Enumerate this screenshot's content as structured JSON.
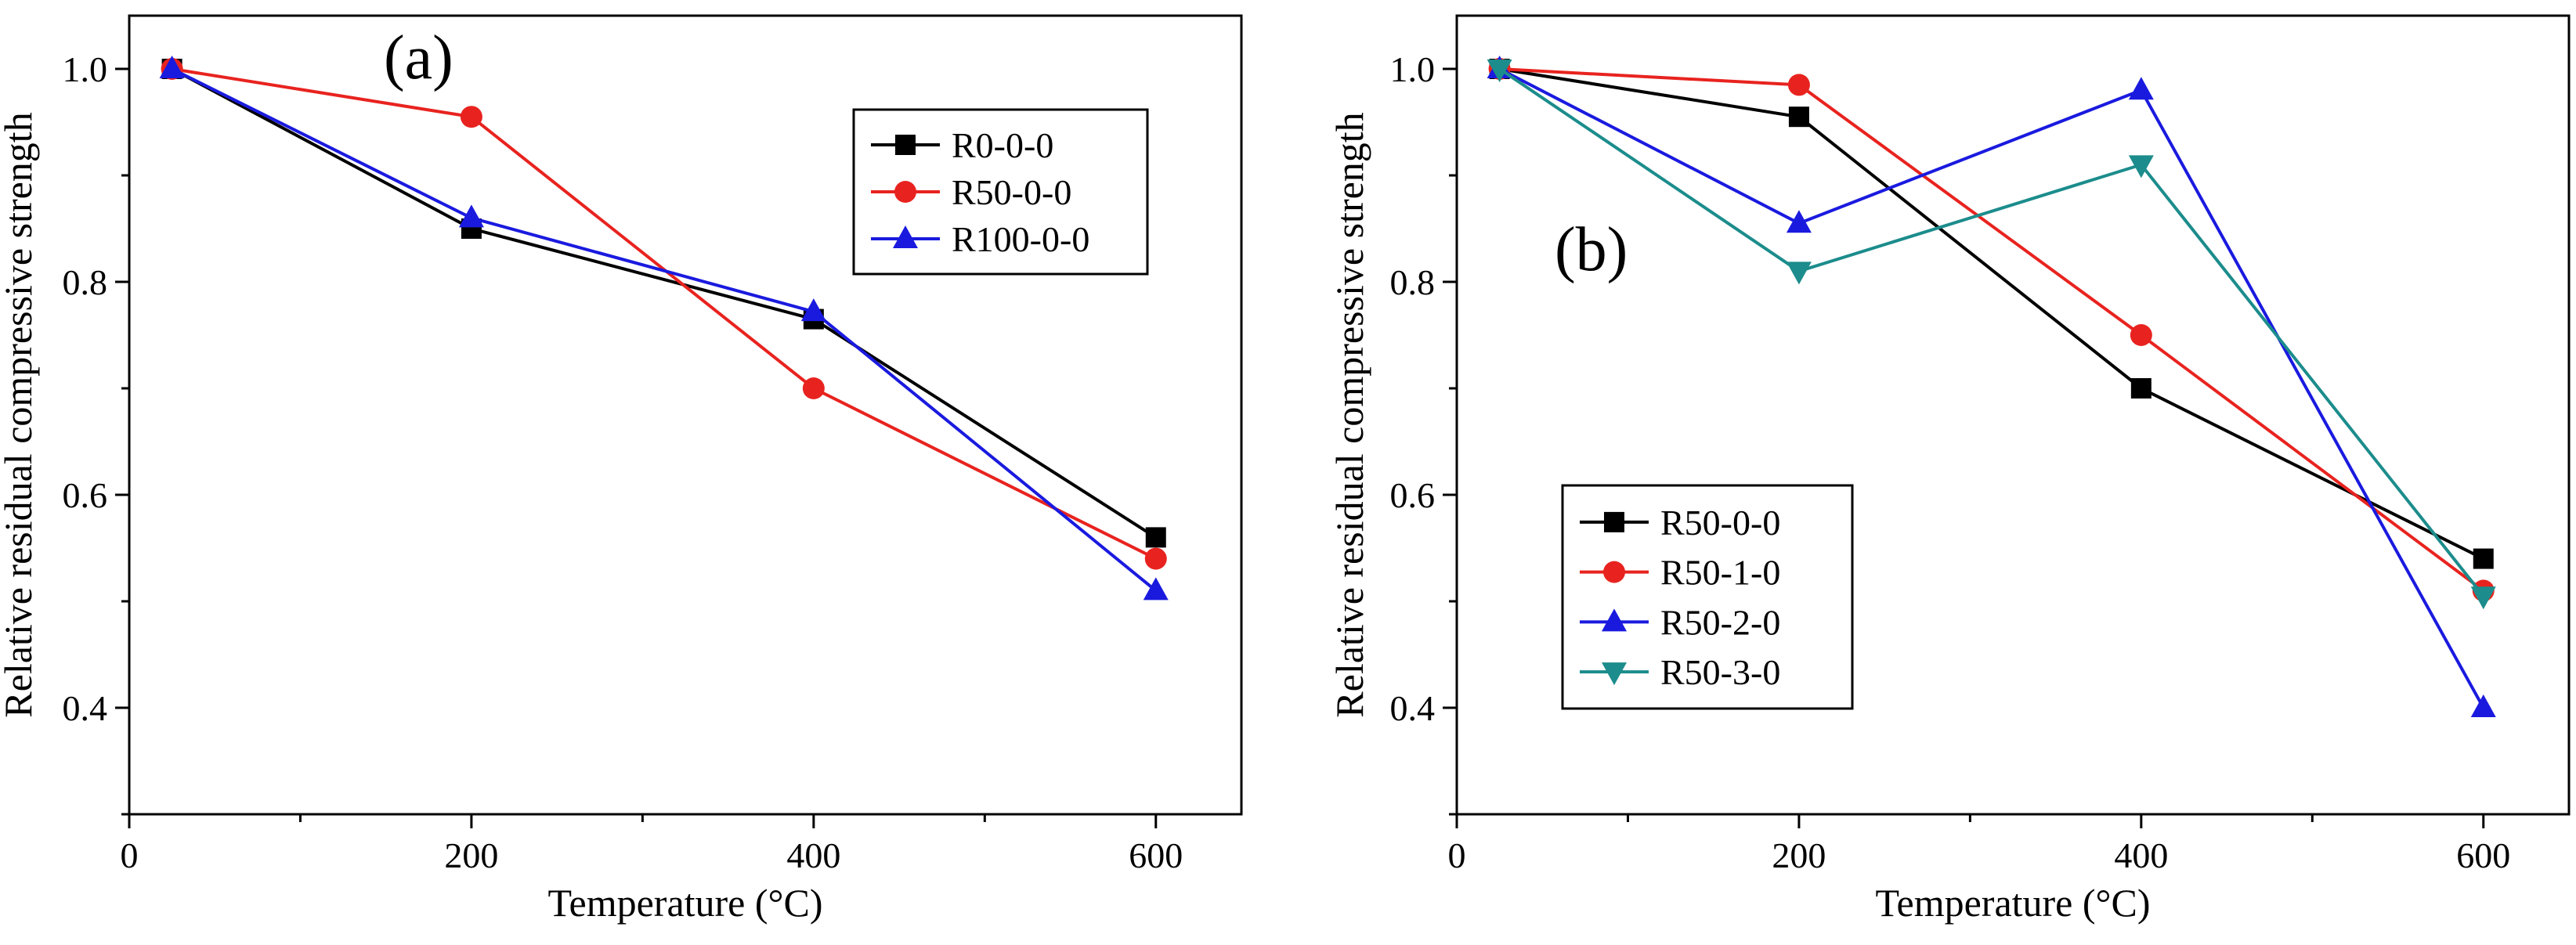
{
  "chart_data": [
    {
      "type": "line",
      "panel_label": "(a)",
      "xlabel": "Temperature (°C)",
      "ylabel": "Relative residual compressive strength",
      "xlim": [
        0,
        650
      ],
      "ylim": [
        0.3,
        1.05
      ],
      "x_ticks": [
        0,
        200,
        400,
        600
      ],
      "y_ticks": [
        0.4,
        0.6,
        0.8,
        1.0
      ],
      "x_tick_labels": [
        "0",
        "200",
        "400",
        "600"
      ],
      "y_tick_labels": [
        "0.4",
        "0.6",
        "0.8",
        "1.0"
      ],
      "legend_position": "top-right",
      "series": [
        {
          "name": "R0-0-0",
          "color": "#000000",
          "marker": "square",
          "x": [
            25,
            200,
            400,
            600
          ],
          "y": [
            1.0,
            0.85,
            0.765,
            0.56
          ]
        },
        {
          "name": "R50-0-0",
          "color": "#e8231f",
          "marker": "circle",
          "x": [
            25,
            200,
            400,
            600
          ],
          "y": [
            1.0,
            0.955,
            0.7,
            0.54
          ]
        },
        {
          "name": "R100-0-0",
          "color": "#1a1adf",
          "marker": "triangle-up",
          "x": [
            25,
            200,
            400,
            600
          ],
          "y": [
            1.0,
            0.86,
            0.772,
            0.51
          ]
        }
      ]
    },
    {
      "type": "line",
      "panel_label": "(b)",
      "xlabel": "Temperature (°C)",
      "ylabel": "Relative residual compressive strength",
      "xlim": [
        0,
        650
      ],
      "ylim": [
        0.3,
        1.05
      ],
      "x_ticks": [
        0,
        200,
        400,
        600
      ],
      "y_ticks": [
        0.4,
        0.6,
        0.8,
        1.0
      ],
      "x_tick_labels": [
        "0",
        "200",
        "400",
        "600"
      ],
      "y_tick_labels": [
        "0.4",
        "0.6",
        "0.8",
        "1.0"
      ],
      "legend_position": "bottom-left",
      "series": [
        {
          "name": "R50-0-0",
          "color": "#000000",
          "marker": "square",
          "x": [
            25,
            200,
            400,
            600
          ],
          "y": [
            1.0,
            0.955,
            0.7,
            0.54
          ]
        },
        {
          "name": "R50-1-0",
          "color": "#e8231f",
          "marker": "circle",
          "x": [
            25,
            200,
            400,
            600
          ],
          "y": [
            1.0,
            0.985,
            0.75,
            0.51
          ]
        },
        {
          "name": "R50-2-0",
          "color": "#1a1adf",
          "marker": "triangle-up",
          "x": [
            25,
            200,
            400,
            600
          ],
          "y": [
            1.0,
            0.855,
            0.98,
            0.4
          ]
        },
        {
          "name": "R50-3-0",
          "color": "#1c8c8c",
          "marker": "triangle-down",
          "x": [
            25,
            200,
            400,
            600
          ],
          "y": [
            1.0,
            0.81,
            0.91,
            0.505
          ]
        }
      ]
    }
  ]
}
